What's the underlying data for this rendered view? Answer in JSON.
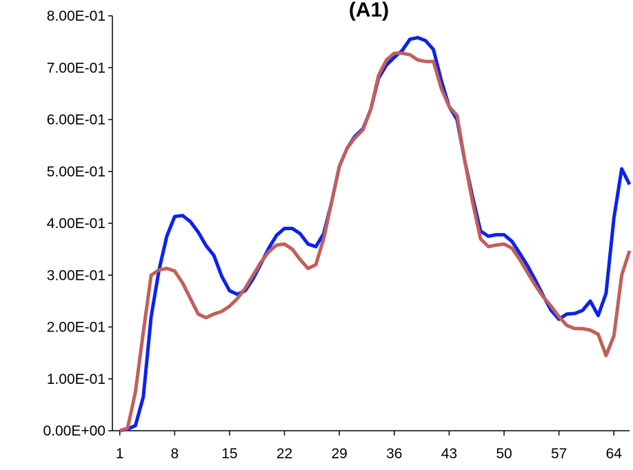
{
  "chart_data": {
    "type": "line",
    "title": "(A1)",
    "x": [
      1,
      2,
      3,
      4,
      5,
      6,
      7,
      8,
      9,
      10,
      11,
      12,
      13,
      14,
      15,
      16,
      17,
      18,
      19,
      20,
      21,
      22,
      23,
      24,
      25,
      26,
      27,
      28,
      29,
      30,
      31,
      32,
      33,
      34,
      35,
      36,
      37,
      38,
      39,
      40,
      41,
      42,
      43,
      44,
      45,
      46,
      47,
      48,
      49,
      50,
      51,
      52,
      53,
      54,
      55,
      56,
      57,
      58,
      59,
      60,
      61,
      62,
      63,
      64,
      65,
      66
    ],
    "xlim": [
      0.5,
      66
    ],
    "xticks": [
      1,
      8,
      15,
      22,
      29,
      36,
      43,
      50,
      57,
      64
    ],
    "ylim": [
      0,
      0.8
    ],
    "yticks": [
      {
        "value": 0,
        "label": "0.00E+00"
      },
      {
        "value": 0.1,
        "label": "1.00E-01"
      },
      {
        "value": 0.2,
        "label": "2.00E-01"
      },
      {
        "value": 0.3,
        "label": "3.00E-01"
      },
      {
        "value": 0.4,
        "label": "4.00E-01"
      },
      {
        "value": 0.5,
        "label": "5.00E-01"
      },
      {
        "value": 0.6,
        "label": "6.00E-01"
      },
      {
        "value": 0.7,
        "label": "7.00E-01"
      },
      {
        "value": 0.8,
        "label": "8.00E-01"
      }
    ],
    "grid": false,
    "series": [
      {
        "color": "#0a22f0",
        "values": [
          0,
          0.003,
          0.01,
          0.065,
          0.22,
          0.31,
          0.375,
          0.413,
          0.415,
          0.403,
          0.383,
          0.357,
          0.338,
          0.298,
          0.27,
          0.263,
          0.27,
          0.293,
          0.322,
          0.352,
          0.377,
          0.39,
          0.39,
          0.38,
          0.36,
          0.355,
          0.38,
          0.44,
          0.51,
          0.545,
          0.568,
          0.582,
          0.62,
          0.68,
          0.705,
          0.72,
          0.733,
          0.755,
          0.758,
          0.752,
          0.735,
          0.675,
          0.625,
          0.6,
          0.52,
          0.45,
          0.385,
          0.375,
          0.378,
          0.378,
          0.365,
          0.342,
          0.318,
          0.29,
          0.26,
          0.232,
          0.215,
          0.225,
          0.226,
          0.232,
          0.25,
          0.222,
          0.265,
          0.41,
          0.505,
          0.475
        ]
      },
      {
        "color": "#c0605a",
        "values": [
          0,
          0.005,
          0.075,
          0.19,
          0.3,
          0.31,
          0.313,
          0.308,
          0.285,
          0.255,
          0.225,
          0.218,
          0.225,
          0.23,
          0.24,
          0.255,
          0.275,
          0.3,
          0.325,
          0.345,
          0.358,
          0.36,
          0.35,
          0.33,
          0.313,
          0.32,
          0.37,
          0.44,
          0.51,
          0.545,
          0.565,
          0.58,
          0.62,
          0.685,
          0.715,
          0.728,
          0.728,
          0.725,
          0.715,
          0.712,
          0.712,
          0.66,
          0.625,
          0.608,
          0.52,
          0.44,
          0.37,
          0.355,
          0.358,
          0.36,
          0.352,
          0.33,
          0.305,
          0.28,
          0.258,
          0.24,
          0.22,
          0.203,
          0.197,
          0.197,
          0.194,
          0.186,
          0.145,
          0.183,
          0.3,
          0.347
        ]
      }
    ]
  }
}
